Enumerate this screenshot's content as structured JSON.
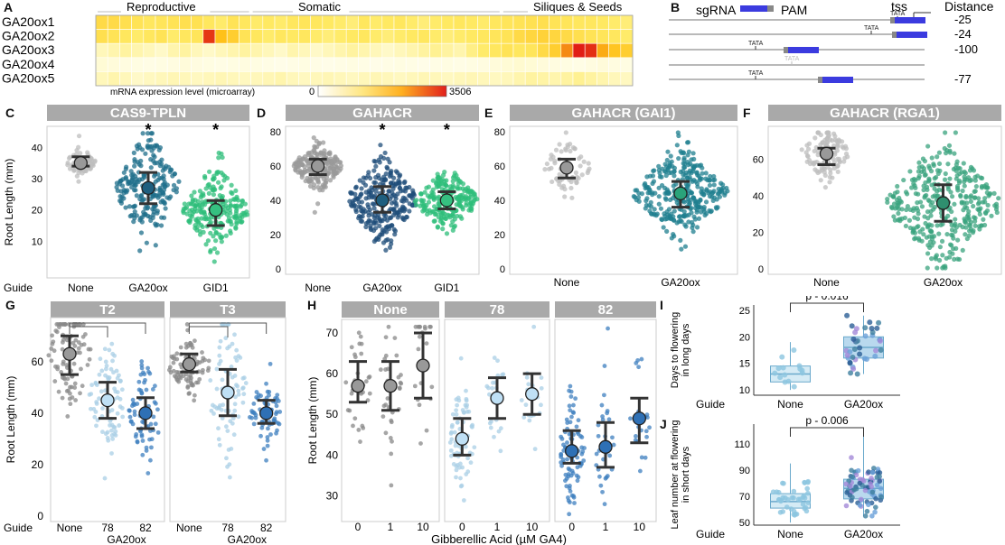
{
  "panel_letters": {
    "A": "A",
    "B": "B",
    "C": "C",
    "D": "D",
    "E": "E",
    "F": "F",
    "G": "G",
    "H": "H",
    "I": "I",
    "J": "J"
  },
  "colors": {
    "gray": "#bdbdbd",
    "strip": "#a9a9a9",
    "navy": "#1f4e79",
    "teal": "#1f8a8a",
    "green": "#3cb371",
    "lightblue": "#a9cfe6",
    "midblue": "#3d7fbf",
    "heat_low": "#fffff0",
    "heat_mid": "#ffd24d",
    "heat_high": "#e8301c",
    "sgrna_blue": "#3b3bdf"
  },
  "chart_data": [
    {
      "panel": "A",
      "type": "heatmap",
      "rows": [
        "GA20ox1",
        "GA20ox2",
        "GA20ox3",
        "GA20ox4",
        "GA20ox5"
      ],
      "column_groups": [
        "Reproductive",
        "Somatic",
        "Siliques & Seeds"
      ],
      "n_columns": 45,
      "colorbar": {
        "label": "mRNA expression level (microarray)",
        "min": "0",
        "max": "3506",
        "range": [
          0,
          3506
        ]
      },
      "values": [
        [
          900,
          900,
          800,
          700,
          600,
          650,
          700,
          800,
          750,
          600,
          500,
          700,
          600,
          500,
          550,
          500,
          600,
          650,
          600,
          550,
          500,
          450,
          600,
          500,
          550,
          600,
          500,
          450,
          500,
          550,
          600,
          550,
          500,
          600,
          650,
          700,
          750,
          800,
          700,
          650,
          600,
          600,
          550,
          500,
          450
        ],
        [
          800,
          700,
          600,
          500,
          600,
          700,
          500,
          600,
          650,
          3200,
          1500,
          1200,
          700,
          600,
          500,
          600,
          550,
          600,
          500,
          450,
          500,
          550,
          600,
          500,
          450,
          500,
          550,
          600,
          500,
          450,
          500,
          550,
          600,
          650,
          700,
          900,
          1000,
          1100,
          1000,
          900,
          800,
          700,
          650,
          600,
          500
        ],
        [
          200,
          250,
          300,
          250,
          200,
          150,
          250,
          300,
          200,
          150,
          200,
          250,
          300,
          250,
          200,
          150,
          250,
          200,
          150,
          200,
          250,
          300,
          250,
          200,
          150,
          200,
          250,
          300,
          350,
          300,
          250,
          400,
          500,
          600,
          700,
          600,
          650,
          900,
          1200,
          2200,
          3500,
          3300,
          1800,
          1400,
          1200
        ],
        [
          100,
          80,
          60,
          50,
          40,
          50,
          60,
          80,
          60,
          50,
          40,
          50,
          60,
          50,
          40,
          30,
          40,
          50,
          40,
          30,
          40,
          50,
          40,
          30,
          40,
          50,
          40,
          30,
          40,
          50,
          40,
          50,
          60,
          80,
          100,
          120,
          100,
          80,
          60,
          50,
          40,
          60,
          80,
          60,
          50
        ],
        [
          200,
          250,
          200,
          150,
          180,
          200,
          220,
          200,
          180,
          200,
          220,
          200,
          180,
          200,
          220,
          250,
          200,
          180,
          200,
          220,
          200,
          180,
          200,
          220,
          200,
          180,
          200,
          220,
          200,
          180,
          200,
          220,
          200,
          180,
          200,
          250,
          300,
          280,
          250,
          300,
          350,
          300,
          250,
          200,
          180
        ]
      ]
    },
    {
      "panel": "B",
      "type": "diagram",
      "legend": {
        "sgrna": "sgRNA",
        "pam": "PAM"
      },
      "tss": "tss",
      "distance_header": "Distance",
      "rows": [
        {
          "tata": "TATA",
          "distance": "-25"
        },
        {
          "tata": "TATA",
          "distance": "-24"
        },
        {
          "tata": "TATA",
          "distance": "-100"
        },
        {
          "tata": "TATA",
          "distance": ""
        },
        {
          "tata": "TATA",
          "distance": "-77"
        }
      ]
    },
    {
      "panel": "C",
      "type": "scatter",
      "title": "CAS9-TPLN",
      "ylabel": "Root Length (mm)",
      "ylim": [
        0,
        45
      ],
      "yticks": [
        10,
        20,
        30,
        40
      ],
      "row_label": "Guide",
      "groups": [
        {
          "name": "None",
          "median": 35,
          "q1": 34,
          "q3": 37,
          "sig": ""
        },
        {
          "name": "GA20ox",
          "median": 27,
          "q1": 22,
          "q3": 32,
          "sig": "*"
        },
        {
          "name": "GID1",
          "median": 20,
          "q1": 15,
          "q3": 23,
          "sig": "*"
        }
      ]
    },
    {
      "panel": "D",
      "type": "scatter",
      "title": "GAHACR",
      "ylim": [
        0,
        80
      ],
      "yticks": [
        0,
        20,
        40,
        60,
        80
      ],
      "groups": [
        {
          "name": "None",
          "median": 60,
          "q1": 55,
          "q3": 64,
          "sig": ""
        },
        {
          "name": "GA20ox",
          "median": 40,
          "q1": 33,
          "q3": 48,
          "sig": "*"
        },
        {
          "name": "GID1",
          "median": 40,
          "q1": 35,
          "q3": 45,
          "sig": "*"
        }
      ]
    },
    {
      "panel": "E",
      "type": "scatter",
      "title": "GAHACR (GAI1)",
      "ylim": [
        0,
        80
      ],
      "yticks": [
        0,
        20,
        40,
        60,
        80
      ],
      "groups": [
        {
          "name": "None",
          "median": 59,
          "q1": 53,
          "q3": 64,
          "sig": ""
        },
        {
          "name": "GA20ox",
          "median": 44,
          "q1": 36,
          "q3": 51,
          "sig": ""
        }
      ]
    },
    {
      "panel": "F",
      "type": "scatter",
      "title": "GAHACR (RGA1)",
      "ylim": [
        0,
        75
      ],
      "yticks": [
        0,
        20,
        40,
        60
      ],
      "groups": [
        {
          "name": "None",
          "median": 63,
          "q1": 57,
          "q3": 66,
          "sig": ""
        },
        {
          "name": "GA20ox",
          "median": 36,
          "q1": 26,
          "q3": 46,
          "sig": ""
        }
      ]
    },
    {
      "panel": "G",
      "type": "scatter",
      "ylabel": "Root Length (mm)",
      "ylim": [
        0,
        75
      ],
      "yticks": [
        0,
        20,
        40,
        60
      ],
      "row_label": "Guide",
      "group_label": "GA20ox",
      "facets": [
        {
          "title": "T2",
          "groups": [
            {
              "name": "None",
              "median": 63,
              "q1": 55,
              "q3": 70
            },
            {
              "name": "78",
              "median": 45,
              "q1": 38,
              "q3": 52
            },
            {
              "name": "82",
              "median": 40,
              "q1": 34,
              "q3": 46
            }
          ]
        },
        {
          "title": "T3",
          "groups": [
            {
              "name": "None",
              "median": 59,
              "q1": 56,
              "q3": 63
            },
            {
              "name": "78",
              "median": 48,
              "q1": 39,
              "q3": 57
            },
            {
              "name": "82",
              "median": 40,
              "q1": 36,
              "q3": 45
            }
          ]
        }
      ]
    },
    {
      "panel": "H",
      "type": "scatter",
      "ylabel": "Root Length (mm)",
      "xlabel": "Gibberellic Acid (µM GA4)",
      "ylim": [
        25,
        72
      ],
      "yticks": [
        30,
        40,
        50,
        60,
        70
      ],
      "facets": [
        {
          "title": "None",
          "groups": [
            {
              "name": "0",
              "median": 57,
              "q1": 53,
              "q3": 63
            },
            {
              "name": "1",
              "median": 57,
              "q1": 51,
              "q3": 63
            },
            {
              "name": "10",
              "median": 62,
              "q1": 54,
              "q3": 70
            }
          ]
        },
        {
          "title": "78",
          "groups": [
            {
              "name": "0",
              "median": 44,
              "q1": 40,
              "q3": 49
            },
            {
              "name": "1",
              "median": 54,
              "q1": 49,
              "q3": 59
            },
            {
              "name": "10",
              "median": 55,
              "q1": 50,
              "q3": 60
            }
          ]
        },
        {
          "title": "82",
          "groups": [
            {
              "name": "0",
              "median": 41,
              "q1": 38,
              "q3": 46
            },
            {
              "name": "1",
              "median": 42,
              "q1": 37,
              "q3": 48
            },
            {
              "name": "10",
              "median": 49,
              "q1": 43,
              "q3": 54
            }
          ]
        }
      ]
    },
    {
      "panel": "I",
      "type": "box",
      "ylabel": "Days to flowering in long days",
      "ylim": [
        9,
        26
      ],
      "yticks": [
        10,
        15,
        20,
        25
      ],
      "row_label": "Guide",
      "pvalue": "p - 0.016",
      "groups": [
        {
          "name": "None",
          "median": 13,
          "q1": 11.5,
          "q3": 14.5,
          "min": 10,
          "max": 19
        },
        {
          "name": "GA20ox",
          "median": 18,
          "q1": 16,
          "q3": 20,
          "min": 13,
          "max": 24
        }
      ]
    },
    {
      "panel": "J",
      "type": "box",
      "ylabel": "Leaf number at flowering in short days",
      "ylim": [
        48,
        125
      ],
      "yticks": [
        50,
        70,
        90,
        110
      ],
      "row_label": "Guide",
      "pvalue": "p - 0.006",
      "groups": [
        {
          "name": "None",
          "median": 66,
          "q1": 61,
          "q3": 72,
          "min": 50,
          "max": 95
        },
        {
          "name": "GA20ox",
          "median": 76,
          "q1": 68,
          "q3": 83,
          "min": 55,
          "max": 122
        }
      ]
    }
  ]
}
